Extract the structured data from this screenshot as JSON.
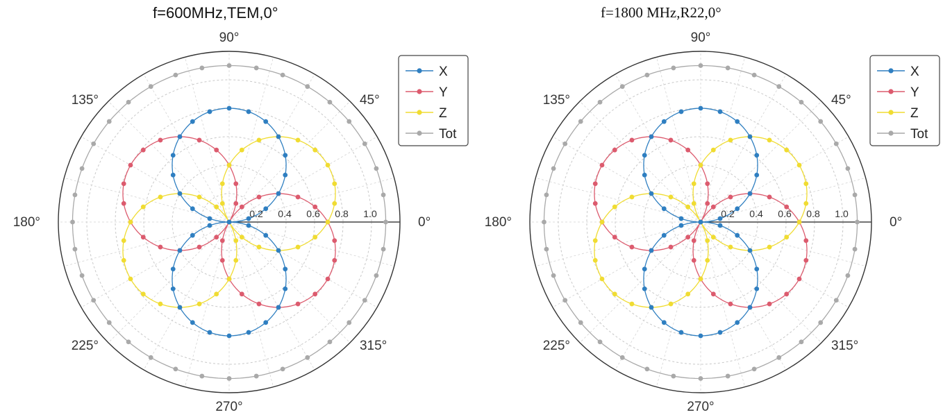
{
  "chart_data": [
    {
      "type": "polar-line",
      "title": "f=600MHz,TEM,0°",
      "angle_ticks": [
        "0°",
        "45°",
        "90°",
        "135°",
        "180°",
        "225°",
        "270°",
        "315°"
      ],
      "r_ticks": [
        "0.2",
        "0.4",
        "0.6",
        "0.8",
        "1.0"
      ],
      "rlim": [
        0,
        1.2
      ],
      "grid": true,
      "legend_position": "top-right",
      "series": [
        {
          "name": "X",
          "color": "#2f7fc1",
          "shape": "cos",
          "amplitude": 0.8,
          "offset_deg": 90,
          "petals": 2,
          "markers_per_petal": 18
        },
        {
          "name": "Y",
          "color": "#dc5b6e",
          "shape": "cos",
          "amplitude": 0.8,
          "offset_deg": 150,
          "petals": 2,
          "markers_per_petal": 18
        },
        {
          "name": "Z",
          "color": "#f0dc32",
          "shape": "cos",
          "amplitude": 0.8,
          "offset_deg": 30,
          "petals": 2,
          "markers_per_petal": 18
        },
        {
          "name": "Tot",
          "color": "#a9a9a9",
          "shape": "const",
          "amplitude": 1.1,
          "offset_deg": 0,
          "markers": 36
        }
      ]
    },
    {
      "type": "polar-line",
      "title": "f=1800 MHz,R22,0°",
      "angle_ticks": [
        "0°",
        "45°",
        "90°",
        "135°",
        "180°",
        "225°",
        "270°",
        "315°"
      ],
      "r_ticks": [
        "0.2",
        "0.4",
        "0.6",
        "0.8",
        "1.0"
      ],
      "rlim": [
        0,
        1.2
      ],
      "grid": true,
      "legend_position": "top-right",
      "series": [
        {
          "name": "X",
          "color": "#2f7fc1",
          "shape": "cos",
          "amplitude": 0.8,
          "offset_deg": 90,
          "petals": 2,
          "markers_per_petal": 18
        },
        {
          "name": "Y",
          "color": "#dc5b6e",
          "shape": "cos",
          "amplitude": 0.8,
          "offset_deg": 150,
          "petals": 2,
          "markers_per_petal": 18
        },
        {
          "name": "Z",
          "color": "#f0dc32",
          "shape": "cos",
          "amplitude": 0.8,
          "offset_deg": 30,
          "petals": 2,
          "markers_per_petal": 18
        },
        {
          "name": "Tot",
          "color": "#a9a9a9",
          "shape": "const",
          "amplitude": 1.1,
          "offset_deg": 0,
          "markers": 36
        }
      ]
    }
  ]
}
